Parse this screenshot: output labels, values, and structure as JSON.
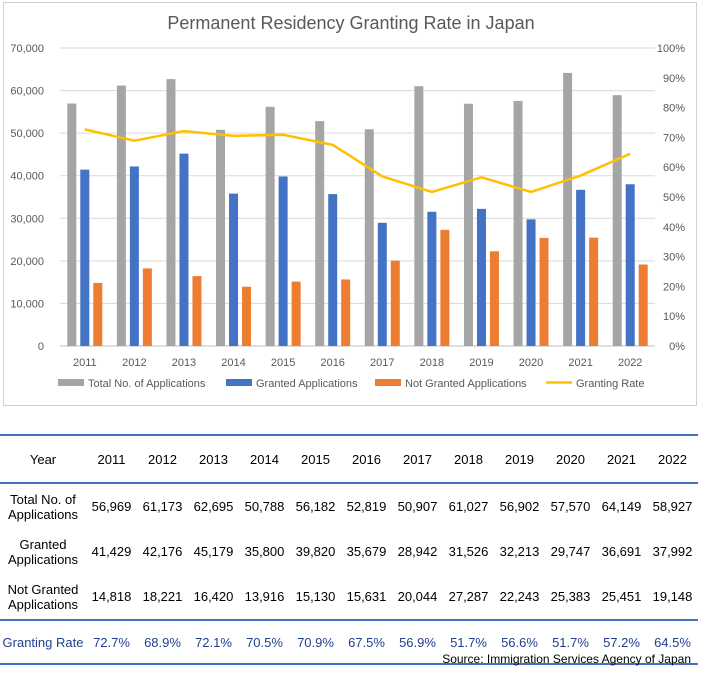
{
  "chart_data": {
    "type": "bar",
    "title": "Permanent Residency Granting Rate in Japan",
    "categories": [
      "2011",
      "2012",
      "2013",
      "2014",
      "2015",
      "2016",
      "2017",
      "2018",
      "2019",
      "2020",
      "2021",
      "2022"
    ],
    "series": [
      {
        "name": "Total No. of Applications",
        "type": "bar",
        "axis": "left",
        "color": "#a5a5a5",
        "values": [
          56969,
          61173,
          62695,
          50788,
          56182,
          52819,
          50907,
          61027,
          56902,
          57570,
          64149,
          58927
        ]
      },
      {
        "name": "Granted Applications",
        "type": "bar",
        "axis": "left",
        "color": "#4472c4",
        "values": [
          41429,
          42176,
          45179,
          35800,
          39820,
          35679,
          28942,
          31526,
          32213,
          29747,
          36691,
          37992
        ]
      },
      {
        "name": "Not Granted Applications",
        "type": "bar",
        "axis": "left",
        "color": "#ed7d31",
        "values": [
          14818,
          18221,
          16420,
          13916,
          15130,
          15631,
          20044,
          27287,
          22243,
          25383,
          25451,
          19148
        ]
      },
      {
        "name": "Granting Rate",
        "type": "line",
        "axis": "right",
        "color": "#ffc000",
        "values": [
          72.7,
          68.9,
          72.1,
          70.5,
          70.9,
          67.5,
          56.9,
          51.7,
          56.6,
          51.7,
          57.2,
          64.5
        ]
      }
    ],
    "ylim": [
      0,
      70000
    ],
    "y_ticks": [
      "0",
      "10,000",
      "20,000",
      "30,000",
      "40,000",
      "50,000",
      "60,000",
      "70,000"
    ],
    "y2lim": [
      0,
      100
    ],
    "y2_ticks": [
      "0%",
      "10%",
      "20%",
      "30%",
      "40%",
      "50%",
      "60%",
      "70%",
      "80%",
      "90%",
      "100%"
    ],
    "grid": true,
    "legend_position": "bottom"
  },
  "table": {
    "header_label": "Year",
    "rows": [
      {
        "label_1": "Total No. of",
        "label_2": "Applications",
        "cells": [
          "56,969",
          "61,173",
          "62,695",
          "50,788",
          "56,182",
          "52,819",
          "50,907",
          "61,027",
          "56,902",
          "57,570",
          "64,149",
          "58,927"
        ]
      },
      {
        "label_1": "Granted",
        "label_2": "Applications",
        "cells": [
          "41,429",
          "42,176",
          "45,179",
          "35,800",
          "39,820",
          "35,679",
          "28,942",
          "31,526",
          "32,213",
          "29,747",
          "36,691",
          "37,992"
        ]
      },
      {
        "label_1": "Not Granted",
        "label_2": "Applications",
        "cells": [
          "14,818",
          "18,221",
          "16,420",
          "13,916",
          "15,130",
          "15,631",
          "20,044",
          "27,287",
          "22,243",
          "25,383",
          "25,451",
          "19,148"
        ]
      }
    ],
    "rate_label": "Granting Rate",
    "rate_cells": [
      "72.7%",
      "68.9%",
      "72.1%",
      "70.5%",
      "70.9%",
      "67.5%",
      "56.9%",
      "51.7%",
      "56.6%",
      "51.7%",
      "57.2%",
      "64.5%"
    ]
  },
  "source": "Source: Immigration Services Agency of Japan"
}
